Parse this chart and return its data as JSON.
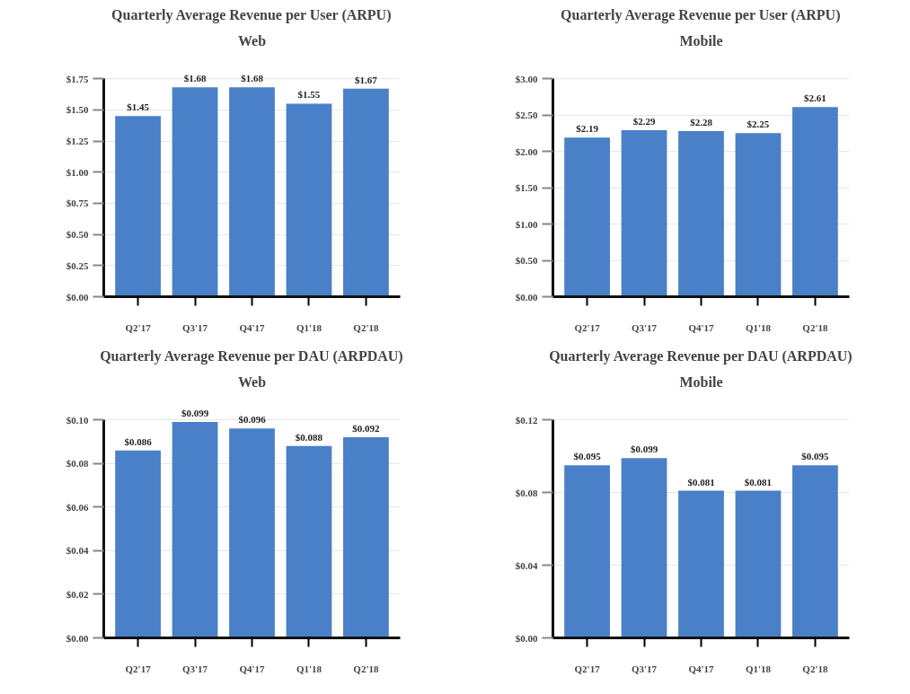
{
  "chart_data": [
    {
      "type": "bar",
      "title": "Quarterly Average Revenue per User (ARPU)",
      "subtitle": "Web",
      "categories": [
        "Q2'17",
        "Q3'17",
        "Q4'17",
        "Q1'18",
        "Q2'18"
      ],
      "values": [
        1.45,
        1.68,
        1.68,
        1.55,
        1.67
      ],
      "value_labels": [
        "$1.45",
        "$1.68",
        "$1.68",
        "$1.55",
        "$1.67"
      ],
      "color": "#4a80c8",
      "ylim": [
        0,
        1.75
      ],
      "yticks": [
        {
          "value": 0,
          "label": "$0.00"
        },
        {
          "value": 0.25,
          "label": "$0.25"
        },
        {
          "value": 0.5,
          "label": "$0.50"
        },
        {
          "value": 0.75,
          "label": "$0.75"
        },
        {
          "value": 1.0,
          "label": "$1.00"
        },
        {
          "value": 1.25,
          "label": "$1.25"
        },
        {
          "value": 1.5,
          "label": "$1.50"
        },
        {
          "value": 1.75,
          "label": "$1.75"
        }
      ],
      "grid": "y"
    },
    {
      "type": "bar",
      "title": "Quarterly Average Revenue per User (ARPU)",
      "subtitle": "Mobile",
      "categories": [
        "Q2'17",
        "Q3'17",
        "Q4'17",
        "Q1'18",
        "Q2'18"
      ],
      "values": [
        2.19,
        2.29,
        2.28,
        2.25,
        2.61
      ],
      "value_labels": [
        "$2.19",
        "$2.29",
        "$2.28",
        "$2.25",
        "$2.61"
      ],
      "color": "#4a80c8",
      "ylim": [
        0,
        3.0
      ],
      "yticks": [
        {
          "value": 0,
          "label": "$0.00"
        },
        {
          "value": 0.5,
          "label": "$0.50"
        },
        {
          "value": 1.0,
          "label": "$1.00"
        },
        {
          "value": 1.5,
          "label": "$1.50"
        },
        {
          "value": 2.0,
          "label": "$2.00"
        },
        {
          "value": 2.5,
          "label": "$2.50"
        },
        {
          "value": 3.0,
          "label": "$3.00"
        }
      ],
      "grid": "y"
    },
    {
      "type": "bar",
      "title": "Quarterly Average Revenue per DAU (ARPDAU)",
      "subtitle": "Web",
      "categories": [
        "Q2'17",
        "Q3'17",
        "Q4'17",
        "Q1'18",
        "Q2'18"
      ],
      "values": [
        0.086,
        0.099,
        0.096,
        0.088,
        0.092
      ],
      "value_labels": [
        "$0.086",
        "$0.099",
        "$0.096",
        "$0.088",
        "$0.092"
      ],
      "color": "#4a80c8",
      "ylim": [
        0,
        0.1
      ],
      "yticks": [
        {
          "value": 0,
          "label": "$0.00"
        },
        {
          "value": 0.02,
          "label": "$0.02"
        },
        {
          "value": 0.04,
          "label": "$0.04"
        },
        {
          "value": 0.06,
          "label": "$0.06"
        },
        {
          "value": 0.08,
          "label": "$0.08"
        },
        {
          "value": 0.1,
          "label": "$0.10"
        }
      ],
      "grid": "y"
    },
    {
      "type": "bar",
      "title": "Quarterly Average Revenue per DAU (ARPDAU)",
      "subtitle": "Mobile",
      "categories": [
        "Q2'17",
        "Q3'17",
        "Q4'17",
        "Q1'18",
        "Q2'18"
      ],
      "values": [
        0.095,
        0.099,
        0.081,
        0.081,
        0.095
      ],
      "value_labels": [
        "$0.095",
        "$0.099",
        "$0.081",
        "$0.081",
        "$0.095"
      ],
      "color": "#4a80c8",
      "ylim": [
        0,
        0.12
      ],
      "yticks": [
        {
          "value": 0,
          "label": "$0.00"
        },
        {
          "value": 0.04,
          "label": "$0.04"
        },
        {
          "value": 0.08,
          "label": "$0.08"
        },
        {
          "value": 0.12,
          "label": "$0.12"
        }
      ],
      "grid": "y"
    }
  ]
}
